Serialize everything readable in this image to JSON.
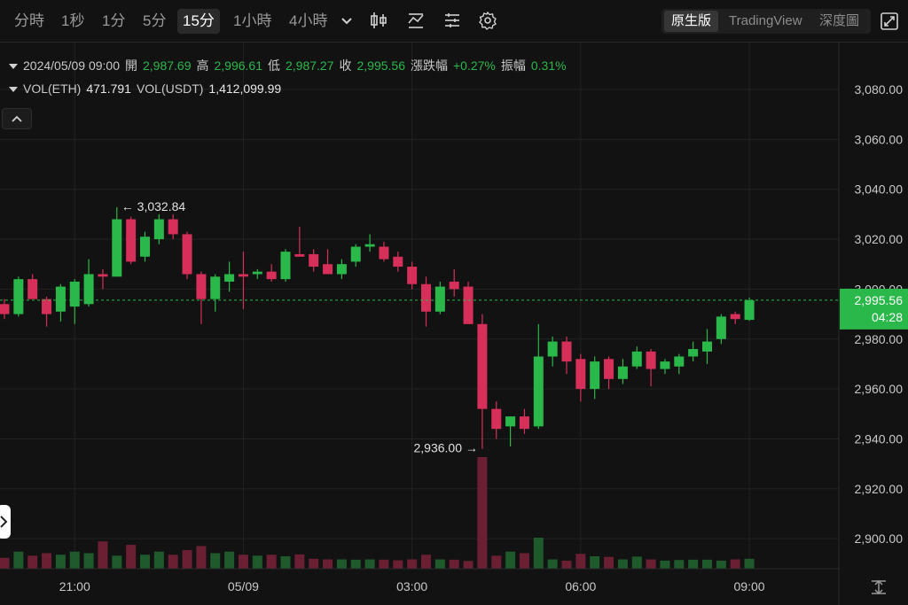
{
  "toolbar": {
    "timeframes": [
      {
        "label": "分時",
        "active": false
      },
      {
        "label": "1秒",
        "active": false
      },
      {
        "label": "1分",
        "active": false
      },
      {
        "label": "5分",
        "active": false
      },
      {
        "label": "15分",
        "active": true
      },
      {
        "label": "1小時",
        "active": false
      },
      {
        "label": "4小時",
        "active": false
      }
    ],
    "view_modes": [
      {
        "label": "原生版",
        "active": true
      },
      {
        "label": "TradingView",
        "active": false
      },
      {
        "label": "深度圖",
        "active": false
      }
    ]
  },
  "ohlc": {
    "datetime": "2024/05/09 09:00",
    "open_label": "開",
    "open": "2,987.69",
    "high_label": "高",
    "high": "2,996.61",
    "low_label": "低",
    "low": "2,987.27",
    "close_label": "收",
    "close": "2,995.56",
    "change_label": "漲跌幅",
    "change": "+0.27%",
    "amplitude_label": "振幅",
    "amplitude": "0.31%"
  },
  "volume": {
    "eth_label": "VOL(ETH)",
    "eth": "471.791",
    "usdt_label": "VOL(USDT)",
    "usdt": "1,412,099.99"
  },
  "colors": {
    "up": "#2bb84a",
    "down": "#d6305a",
    "background": "#121212",
    "grid": "#222222",
    "price_tag": "#2bb84a"
  },
  "chart_data": {
    "type": "candlestick",
    "ylim": [
      2890,
      3095
    ],
    "y_ticks": [
      "2,900.00",
      "2,920.00",
      "2,940.00",
      "2,960.00",
      "2,980.00",
      "3,000.00",
      "3,020.00",
      "3,040.00",
      "3,060.00",
      "3,080.00"
    ],
    "y_tick_values": [
      2900,
      2920,
      2940,
      2960,
      2980,
      3000,
      3020,
      3040,
      3060,
      3080
    ],
    "x_ticks": [
      {
        "label": "21:00",
        "index": 5
      },
      {
        "label": "05/09",
        "index": 17
      },
      {
        "label": "03:00",
        "index": 29
      },
      {
        "label": "06:00",
        "index": 41
      },
      {
        "label": "09:00",
        "index": 53
      }
    ],
    "last_price": "2,995.56",
    "last_price_value": 2995.56,
    "countdown": "04:28",
    "high_marker": {
      "label": "3,032.84",
      "index": 8,
      "value": 3032.84
    },
    "low_marker": {
      "label": "2,936.00",
      "index": 34,
      "value": 2936.0
    },
    "ohlc": [
      [
        2994,
        2996,
        2988,
        2990
      ],
      [
        2990,
        3005,
        2989,
        3004
      ],
      [
        3004,
        3006,
        2997,
        2996
      ],
      [
        2996,
        2997,
        2985,
        2990
      ],
      [
        2991,
        3002,
        2987,
        3001
      ],
      [
        2993,
        3004,
        2986,
        3003
      ],
      [
        2994,
        3012,
        2993,
        3006
      ],
      [
        3006,
        3008,
        3000,
        3005
      ],
      [
        3005,
        3032.84,
        3005,
        3028
      ],
      [
        3028,
        3029,
        3010,
        3011
      ],
      [
        3013,
        3023,
        3011,
        3021
      ],
      [
        3020,
        3030,
        3018,
        3028
      ],
      [
        3028,
        3030,
        3020,
        3022
      ],
      [
        3022,
        3023,
        3004,
        3006
      ],
      [
        3006,
        3007,
        2986,
        2996
      ],
      [
        2996,
        3006,
        2991,
        3005
      ],
      [
        3003,
        3011,
        2999,
        3006
      ],
      [
        3006,
        3015,
        2992,
        3005
      ],
      [
        3006,
        3008,
        3004,
        3007
      ],
      [
        3007,
        3010,
        3003,
        3004
      ],
      [
        3004,
        3016,
        3003,
        3015
      ],
      [
        3014,
        3025,
        3013,
        3013
      ],
      [
        3014,
        3016,
        3007,
        3009
      ],
      [
        3010,
        3016,
        3006,
        3006
      ],
      [
        3006,
        3012,
        3004,
        3010
      ],
      [
        3011,
        3018,
        3009,
        3017
      ],
      [
        3017,
        3022,
        3015,
        3018
      ],
      [
        3017,
        3019,
        3011,
        3012
      ],
      [
        3013,
        3015,
        3007,
        3009
      ],
      [
        3009,
        3011,
        3000,
        3002
      ],
      [
        3002,
        3005,
        2985,
        2991
      ],
      [
        2991,
        3003,
        2990,
        3001
      ],
      [
        3003,
        3008,
        2997,
        3000
      ],
      [
        3001,
        3003,
        2986,
        2986
      ],
      [
        2986,
        2990,
        2936,
        2952
      ],
      [
        2952,
        2955,
        2940,
        2944
      ],
      [
        2945,
        2948,
        2937,
        2949
      ],
      [
        2949,
        2952,
        2942,
        2944
      ],
      [
        2945,
        2986,
        2944,
        2973
      ],
      [
        2973,
        2981,
        2969,
        2979
      ],
      [
        2979,
        2981,
        2966,
        2971
      ],
      [
        2972,
        2974,
        2955,
        2960
      ],
      [
        2960,
        2973,
        2956,
        2971
      ],
      [
        2972,
        2973,
        2960,
        2964
      ],
      [
        2964,
        2972,
        2962,
        2969
      ],
      [
        2969,
        2977,
        2968,
        2975
      ],
      [
        2975,
        2976,
        2961,
        2968
      ],
      [
        2968,
        2972,
        2966,
        2971
      ],
      [
        2969,
        2974,
        2966,
        2973
      ],
      [
        2973,
        2979,
        2971,
        2976
      ],
      [
        2975,
        2984,
        2970,
        2979
      ],
      [
        2980,
        2990,
        2978,
        2989
      ],
      [
        2990,
        2991,
        2986,
        2988
      ],
      [
        2987.69,
        2996.61,
        2987.27,
        2995.56
      ]
    ],
    "volumes": [
      3.5,
      5.5,
      4.2,
      5,
      4.5,
      5.5,
      5,
      8.8,
      4.2,
      7.7,
      4.5,
      5.5,
      4.5,
      6,
      7.3,
      5,
      5.5,
      4.5,
      4.2,
      4.5,
      4,
      4.6,
      3.2,
      3,
      3,
      2.9,
      3,
      2.9,
      2.7,
      3,
      4.5,
      3,
      2.9,
      2.5,
      36,
      4.2,
      5.5,
      5,
      10,
      3,
      2.6,
      4.8,
      4,
      3.8,
      3,
      3.9,
      3,
      2.6,
      2.8,
      2.9,
      2.9,
      2.6,
      3,
      3.2
    ],
    "vol_max": 40
  }
}
